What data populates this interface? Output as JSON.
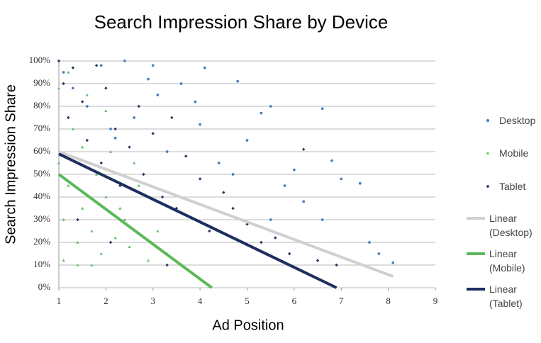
{
  "chart_data": {
    "type": "scatter",
    "title": "Search Impression Share by Device",
    "x_label": "Ad Position",
    "y_label": "Search Impression Share",
    "xlim": [
      1,
      9
    ],
    "xticks": [
      1,
      2,
      3,
      4,
      5,
      6,
      7,
      8,
      9
    ],
    "ylim": [
      0,
      100
    ],
    "yticks": [
      {
        "value": 0,
        "label": "0%"
      },
      {
        "value": 10,
        "label": "10%"
      },
      {
        "value": 20,
        "label": "20%"
      },
      {
        "value": 30,
        "label": "30%"
      },
      {
        "value": 40,
        "label": "40%"
      },
      {
        "value": 50,
        "label": "50%"
      },
      {
        "value": 60,
        "label": "60%"
      },
      {
        "value": 70,
        "label": "70%"
      },
      {
        "value": 80,
        "label": "80%"
      },
      {
        "value": 90,
        "label": "90%"
      },
      {
        "value": 100,
        "label": "100%"
      }
    ],
    "grid": true,
    "legend": "right",
    "series": [
      {
        "name": "Desktop",
        "type": "scatter",
        "marker": "circle",
        "color": "#4a7ebb",
        "x": [
          1.1,
          1.3,
          1.6,
          1.9,
          2.1,
          2.4,
          2.6,
          2.9,
          3.1,
          3.3,
          3.6,
          3.9,
          4.1,
          4.4,
          4.7,
          4.8,
          5.0,
          5.3,
          5.5,
          5.8,
          6.0,
          6.2,
          6.6,
          6.8,
          7.0,
          7.4,
          7.6,
          7.8,
          8.1,
          3.0,
          2.2,
          4.0,
          5.5,
          6.6
        ],
        "values": [
          95,
          88,
          80,
          98,
          70,
          100,
          75,
          92,
          85,
          60,
          90,
          82,
          97,
          55,
          50,
          91,
          65,
          77,
          80,
          45,
          52,
          38,
          79,
          56,
          48,
          46,
          20,
          15,
          11,
          98,
          66,
          72,
          30,
          30
        ]
      },
      {
        "name": "Mobile",
        "type": "scatter",
        "marker": "triangle",
        "color": "#6cbf6c",
        "x": [
          1.0,
          1.0,
          1.1,
          1.2,
          1.2,
          1.3,
          1.4,
          1.5,
          1.5,
          1.6,
          1.7,
          1.8,
          1.9,
          2.0,
          2.1,
          2.2,
          2.4,
          2.5,
          2.7,
          2.9,
          3.1,
          3.3,
          1.1,
          1.4,
          1.7,
          2.0,
          2.3,
          2.6
        ],
        "values": [
          88,
          55,
          30,
          95,
          45,
          70,
          20,
          62,
          35,
          85,
          25,
          50,
          15,
          40,
          60,
          22,
          30,
          18,
          45,
          12,
          25,
          15,
          12,
          10,
          10,
          78,
          35,
          55
        ]
      },
      {
        "name": "Tablet",
        "type": "scatter",
        "marker": "diamond",
        "color": "#1f3864",
        "x": [
          1.0,
          1.1,
          1.2,
          1.3,
          1.5,
          1.6,
          1.8,
          1.9,
          2.0,
          2.2,
          2.3,
          2.5,
          2.7,
          2.8,
          3.0,
          3.2,
          3.4,
          3.5,
          3.7,
          3.9,
          4.0,
          4.2,
          4.5,
          4.7,
          5.0,
          5.3,
          5.6,
          5.9,
          6.2,
          6.5,
          6.9,
          1.4,
          2.1,
          3.3
        ],
        "values": [
          100,
          90,
          75,
          97,
          82,
          65,
          98,
          55,
          88,
          70,
          45,
          62,
          80,
          50,
          68,
          40,
          75,
          35,
          58,
          30,
          48,
          25,
          42,
          35,
          28,
          20,
          22,
          15,
          61,
          12,
          10,
          30,
          20,
          10
        ]
      },
      {
        "name": "Linear (Desktop)",
        "type": "line",
        "color": "#d0d0d0",
        "x": [
          1,
          8.1
        ],
        "values": [
          60,
          5
        ]
      },
      {
        "name": "Linear (Mobile)",
        "type": "line",
        "color": "#5cb85c",
        "x": [
          1,
          4.25
        ],
        "values": [
          50,
          0
        ]
      },
      {
        "name": "Linear (Tablet)",
        "type": "line",
        "color": "#1c2f5e",
        "x": [
          1,
          6.9
        ],
        "values": [
          59,
          0
        ]
      }
    ]
  }
}
